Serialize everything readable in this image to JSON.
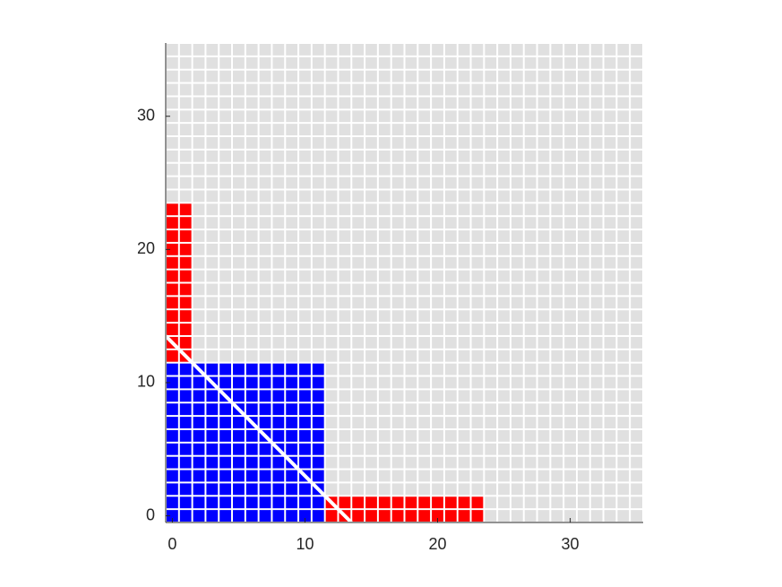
{
  "chart_data": {
    "type": "cellgrid",
    "xlim": [
      -0.5,
      35.5
    ],
    "ylim": [
      -0.5,
      35.5
    ],
    "xticks": [
      0,
      10,
      20,
      30
    ],
    "yticks": [
      0,
      10,
      20,
      30
    ],
    "background_color": "#e0e0e0",
    "regions": [
      {
        "color": "#0000ff",
        "x": [
          0,
          11
        ],
        "y": [
          0,
          11
        ]
      },
      {
        "color": "#ff0000",
        "x": [
          0,
          1
        ],
        "y": [
          12,
          23
        ]
      },
      {
        "color": "#ff0000",
        "x": [
          12,
          23
        ],
        "y": [
          0,
          1
        ]
      }
    ],
    "line": {
      "color": "#ffffff",
      "x": [
        -0.5,
        13.5
      ],
      "y": [
        13.5,
        -0.5
      ]
    }
  }
}
